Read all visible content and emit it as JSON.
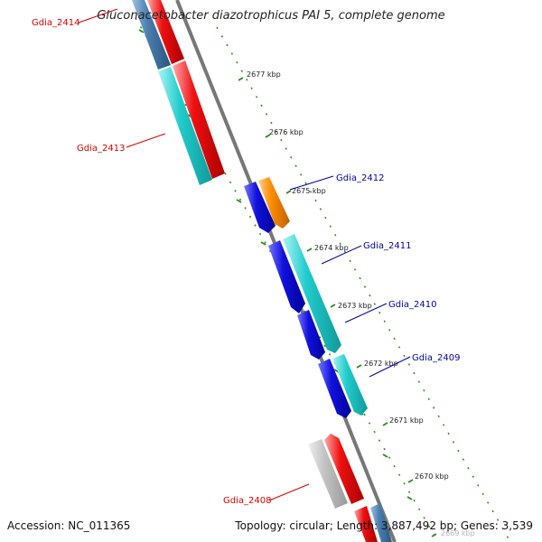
{
  "title": "Gluconacetobacter diazotrophicus PAI 5, complete genome",
  "accession": "Accession: NC_011365",
  "footer_info": "Topology: circular; Length: 3,887,492 bp; Genes: 3,539",
  "colors": {
    "red": "#ee1111",
    "cyan": "#22cccc",
    "blue": "#1111dd",
    "orange": "#ff8c00",
    "grey": "#bbbbbb",
    "steel": "#4a7fb0",
    "backbone": "#777777",
    "ticks": "#2a8a1a",
    "label_red": "#dd0000",
    "label_blue": "#0000aa"
  },
  "scale_labels": [
    {
      "text": "2677 kbp",
      "kbp": 2677
    },
    {
      "text": "2676 kbp",
      "kbp": 2676
    },
    {
      "text": "2675 kbp",
      "kbp": 2675
    },
    {
      "text": "2674 kbp",
      "kbp": 2674
    },
    {
      "text": "2673 kbp",
      "kbp": 2673
    },
    {
      "text": "2672 kbp",
      "kbp": 2672
    },
    {
      "text": "2671 kbp",
      "kbp": 2671
    },
    {
      "text": "2670 kbp",
      "kbp": 2670
    },
    {
      "text": "2669 kbp",
      "kbp": 2669
    }
  ],
  "gene_labels": [
    {
      "text": "Gdia_2414",
      "strand": "reverse"
    },
    {
      "text": "Gdia_2413",
      "strand": "reverse"
    },
    {
      "text": "Gdia_2412",
      "strand": "forward"
    },
    {
      "text": "Gdia_2411",
      "strand": "forward"
    },
    {
      "text": "Gdia_2410",
      "strand": "forward"
    },
    {
      "text": "Gdia_2409",
      "strand": "forward"
    },
    {
      "text": "Gdia_2408",
      "strand": "reverse"
    }
  ]
}
